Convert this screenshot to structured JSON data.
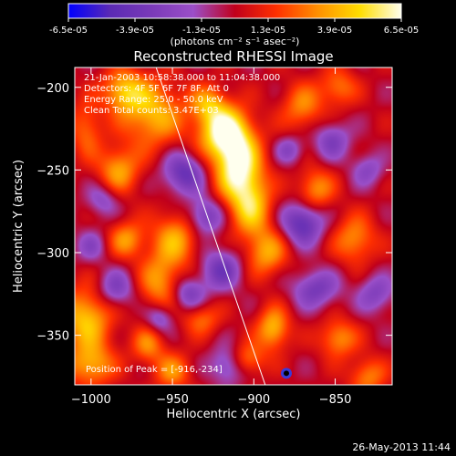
{
  "chart_data": {
    "type": "heatmap",
    "title": "Reconstructed RHESSI Image",
    "xlabel": "Heliocentric X (arcsec)",
    "ylabel": "Heliocentric Y (arcsec)",
    "xlim": [
      -1010,
      -815
    ],
    "ylim": [
      -380,
      -188
    ],
    "x_ticks": [
      -1000,
      -950,
      -900,
      -850
    ],
    "y_ticks": [
      -200,
      -250,
      -300,
      -350
    ],
    "colorbar": {
      "label": "(photons cm⁻² s⁻¹ asec⁻²)",
      "range": [
        -6.5e-05,
        6.5e-05
      ],
      "ticks": [
        "-6.5e-05",
        "-3.9e-05",
        "-1.3e-05",
        "1.3e-05",
        "3.9e-05",
        "6.5e-05"
      ],
      "colors": [
        "#0000ff",
        "#5a2ab4",
        "#7a3ab8",
        "#9b4fc8",
        "#c0001c",
        "#ff3000",
        "#ff9000",
        "#ffdd00",
        "#ffffee"
      ]
    },
    "info_lines": [
      "21-Jan-2003 10:58:38.000 to 11:04:38.000",
      "Detectors: 4F 5F 6F 7F 8F, Att 0",
      "Energy Range: 25.0 - 50.0 keV",
      "Clean    Total counts: 3.47E+03"
    ],
    "peak_label": "Position of Peak = [-916,-234]",
    "peak": {
      "x": -916,
      "y": -234
    },
    "marker": {
      "x": -880,
      "y": -373
    },
    "limb_line": [
      [
        -960,
        -188
      ],
      [
        -893,
        -380
      ]
    ],
    "blobs": [
      {
        "x": -918,
        "y": -227,
        "sx": 11,
        "sy": 11,
        "a": 6.4e-05
      },
      {
        "x": -910,
        "y": -248,
        "sx": 10,
        "sy": 14,
        "a": 6.1e-05
      },
      {
        "x": -902,
        "y": -272,
        "sx": 9,
        "sy": 13,
        "a": 4.4e-05
      },
      {
        "x": -892,
        "y": -300,
        "sx": 9,
        "sy": 10,
        "a": 3.6e-05
      },
      {
        "x": -948,
        "y": -292,
        "sx": 10,
        "sy": 12,
        "a": 3.7e-05
      },
      {
        "x": -958,
        "y": -318,
        "sx": 9,
        "sy": 12,
        "a": 3.3e-05
      },
      {
        "x": -962,
        "y": -216,
        "sx": 13,
        "sy": 14,
        "a": 4.2e-05
      },
      {
        "x": -980,
        "y": -202,
        "sx": 9,
        "sy": 9,
        "a": 4.1e-05
      },
      {
        "x": -928,
        "y": -210,
        "sx": 8,
        "sy": 8,
        "a": 3.2e-05
      },
      {
        "x": -983,
        "y": -250,
        "sx": 9,
        "sy": 10,
        "a": 3.6e-05
      },
      {
        "x": -978,
        "y": -292,
        "sx": 8,
        "sy": 8,
        "a": 3.3e-05
      },
      {
        "x": -1003,
        "y": -340,
        "sx": 11,
        "sy": 13,
        "a": 4.5e-05
      },
      {
        "x": -1000,
        "y": -368,
        "sx": 10,
        "sy": 9,
        "a": 3.8e-05
      },
      {
        "x": -965,
        "y": -356,
        "sx": 7,
        "sy": 8,
        "a": 2.9e-05
      },
      {
        "x": -950,
        "y": -372,
        "sx": 8,
        "sy": 8,
        "a": 3e-05
      },
      {
        "x": -870,
        "y": -212,
        "sx": 9,
        "sy": 10,
        "a": 3e-05
      },
      {
        "x": -848,
        "y": -200,
        "sx": 8,
        "sy": 8,
        "a": 2.8e-05
      },
      {
        "x": -862,
        "y": -262,
        "sx": 8,
        "sy": 9,
        "a": 3.4e-05
      },
      {
        "x": -838,
        "y": -292,
        "sx": 9,
        "sy": 10,
        "a": 3.3e-05
      },
      {
        "x": -888,
        "y": -346,
        "sx": 7,
        "sy": 9,
        "a": 4.2e-05
      },
      {
        "x": -905,
        "y": -365,
        "sx": 8,
        "sy": 7,
        "a": 3.6e-05
      },
      {
        "x": -848,
        "y": -352,
        "sx": 8,
        "sy": 8,
        "a": 3.4e-05
      },
      {
        "x": -830,
        "y": -375,
        "sx": 8,
        "sy": 8,
        "a": 3e-05
      },
      {
        "x": -1003,
        "y": -225,
        "sx": 7,
        "sy": 12,
        "a": 2.6e-05
      },
      {
        "x": -932,
        "y": -340,
        "sx": 8,
        "sy": 7,
        "a": 2.6e-05
      },
      {
        "x": -943,
        "y": -252,
        "sx": 9,
        "sy": 9,
        "a": -4.2e-05
      },
      {
        "x": -930,
        "y": -278,
        "sx": 8,
        "sy": 8,
        "a": -3.6e-05
      },
      {
        "x": -985,
        "y": -322,
        "sx": 8,
        "sy": 8,
        "a": -3.1e-05
      },
      {
        "x": -920,
        "y": -310,
        "sx": 9,
        "sy": 9,
        "a": -3.6e-05
      },
      {
        "x": -870,
        "y": -282,
        "sx": 9,
        "sy": 9,
        "a": -4.6e-05
      },
      {
        "x": -915,
        "y": -368,
        "sx": 8,
        "sy": 8,
        "a": -3.6e-05
      },
      {
        "x": -862,
        "y": -322,
        "sx": 10,
        "sy": 8,
        "a": -3.4e-05
      },
      {
        "x": -852,
        "y": -232,
        "sx": 8,
        "sy": 8,
        "a": -3e-05
      },
      {
        "x": -940,
        "y": -325,
        "sx": 7,
        "sy": 7,
        "a": -3.2e-05
      },
      {
        "x": -958,
        "y": -340,
        "sx": 6,
        "sy": 6,
        "a": -2.8e-05
      },
      {
        "x": -993,
        "y": -268,
        "sx": 7,
        "sy": 7,
        "a": -2.4e-05
      },
      {
        "x": -1000,
        "y": -296,
        "sx": 7,
        "sy": 7,
        "a": -2.2e-05
      },
      {
        "x": -878,
        "y": -238,
        "sx": 6,
        "sy": 6,
        "a": -2.5e-05
      },
      {
        "x": -825,
        "y": -325,
        "sx": 8,
        "sy": 8,
        "a": -2.8e-05
      },
      {
        "x": -830,
        "y": -250,
        "sx": 7,
        "sy": 7,
        "a": -2.4e-05
      }
    ]
  },
  "footer": {
    "date": "26-May-2013 11:44"
  }
}
